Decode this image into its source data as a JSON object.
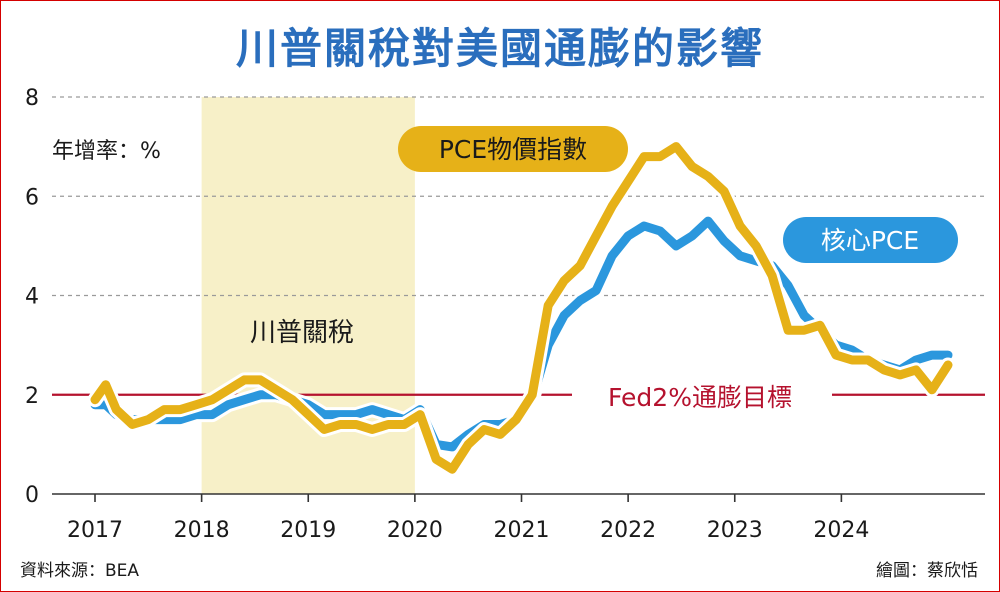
{
  "chart_data": {
    "type": "line",
    "title": "川普關稅對美國通膨的影響",
    "ylabel": "年增率：%",
    "yticks": [
      "0",
      "2",
      "4",
      "6",
      "8"
    ],
    "ylim": [
      0,
      8
    ],
    "xticks": [
      "2017",
      "2018",
      "2019",
      "2020",
      "2021",
      "2022",
      "2023",
      "2024"
    ],
    "grid": "horizontal dashed",
    "shaded_region": {
      "label": "川普關稅",
      "x_start": 2018.0,
      "x_end": 2020.0,
      "color": "#f7f0c8"
    },
    "reference_line": {
      "label": "Fed2%通膨目標",
      "y": 2,
      "color": "#b5122e"
    },
    "series": [
      {
        "name": "核心PCE",
        "color": "#2b97dd",
        "x": [
          2017.0,
          2017.1,
          2017.2,
          2017.35,
          2017.5,
          2017.65,
          2017.8,
          2017.95,
          2018.1,
          2018.25,
          2018.4,
          2018.55,
          2018.7,
          2018.85,
          2019.0,
          2019.15,
          2019.3,
          2019.45,
          2019.6,
          2019.75,
          2019.9,
          2020.05,
          2020.2,
          2020.35,
          2020.5,
          2020.65,
          2020.8,
          2020.95,
          2021.1,
          2021.25,
          2021.4,
          2021.55,
          2021.7,
          2021.85,
          2022.0,
          2022.15,
          2022.3,
          2022.45,
          2022.6,
          2022.75,
          2022.9,
          2023.05,
          2023.2,
          2023.35,
          2023.5,
          2023.65,
          2023.8,
          2023.95,
          2024.1,
          2024.25,
          2024.4,
          2024.55,
          2024.7,
          2024.85,
          2025.0
        ],
        "values": [
          1.8,
          1.8,
          1.6,
          1.5,
          1.5,
          1.5,
          1.5,
          1.6,
          1.6,
          1.8,
          1.9,
          2.0,
          2.0,
          1.9,
          1.8,
          1.6,
          1.6,
          1.6,
          1.7,
          1.6,
          1.5,
          1.7,
          1.0,
          0.95,
          1.2,
          1.4,
          1.4,
          1.5,
          1.9,
          3.0,
          3.6,
          3.9,
          4.1,
          4.8,
          5.2,
          5.4,
          5.3,
          5.0,
          5.2,
          5.5,
          5.1,
          4.8,
          4.7,
          4.6,
          4.2,
          3.6,
          3.3,
          3.0,
          2.9,
          2.7,
          2.6,
          2.5,
          2.7,
          2.8,
          2.8
        ]
      },
      {
        "name": "PCE物價指數",
        "color": "#e6b118",
        "x": [
          2017.0,
          2017.1,
          2017.2,
          2017.35,
          2017.5,
          2017.65,
          2017.8,
          2017.95,
          2018.1,
          2018.25,
          2018.4,
          2018.55,
          2018.7,
          2018.85,
          2019.0,
          2019.15,
          2019.3,
          2019.45,
          2019.6,
          2019.75,
          2019.9,
          2020.05,
          2020.2,
          2020.35,
          2020.5,
          2020.65,
          2020.8,
          2020.95,
          2021.1,
          2021.25,
          2021.4,
          2021.55,
          2021.7,
          2021.85,
          2022.0,
          2022.15,
          2022.3,
          2022.45,
          2022.6,
          2022.75,
          2022.9,
          2023.05,
          2023.2,
          2023.35,
          2023.5,
          2023.65,
          2023.8,
          2023.95,
          2024.1,
          2024.25,
          2024.4,
          2024.55,
          2024.7,
          2024.85,
          2025.0
        ],
        "values": [
          1.9,
          2.2,
          1.7,
          1.4,
          1.5,
          1.7,
          1.7,
          1.8,
          1.9,
          2.1,
          2.3,
          2.3,
          2.1,
          1.9,
          1.6,
          1.3,
          1.4,
          1.4,
          1.3,
          1.4,
          1.4,
          1.6,
          0.7,
          0.5,
          1.0,
          1.3,
          1.2,
          1.5,
          2.0,
          3.8,
          4.3,
          4.6,
          5.2,
          5.8,
          6.3,
          6.8,
          6.8,
          7.0,
          6.6,
          6.4,
          6.1,
          5.4,
          5.0,
          4.4,
          3.3,
          3.3,
          3.4,
          2.8,
          2.7,
          2.7,
          2.5,
          2.4,
          2.5,
          2.1,
          2.6
        ]
      }
    ]
  },
  "source": "資料來源：BEA",
  "credit": "繪圖：蔡欣恬"
}
